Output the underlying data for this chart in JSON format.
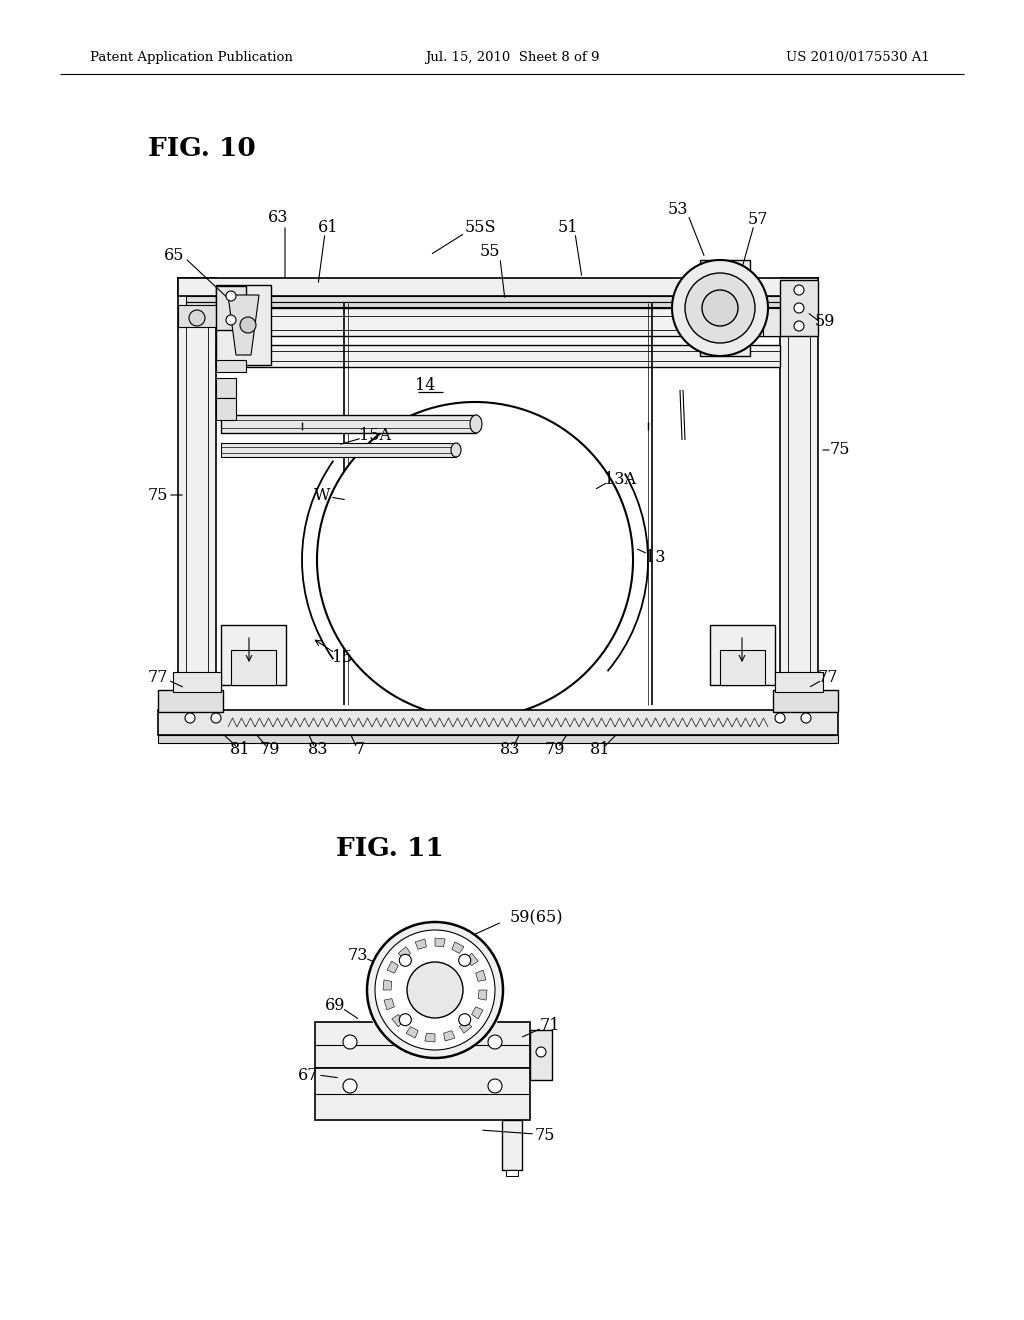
{
  "bg_color": "#ffffff",
  "fig_width": 10.24,
  "fig_height": 13.2,
  "dpi": 100,
  "header_left": "Patent Application Publication",
  "header_center": "Jul. 15, 2010  Sheet 8 of 9",
  "header_right": "US 2010/0175530 A1",
  "fig10_title": "FIG. 10",
  "fig11_title": "FIG. 11",
  "lc": "#000000"
}
